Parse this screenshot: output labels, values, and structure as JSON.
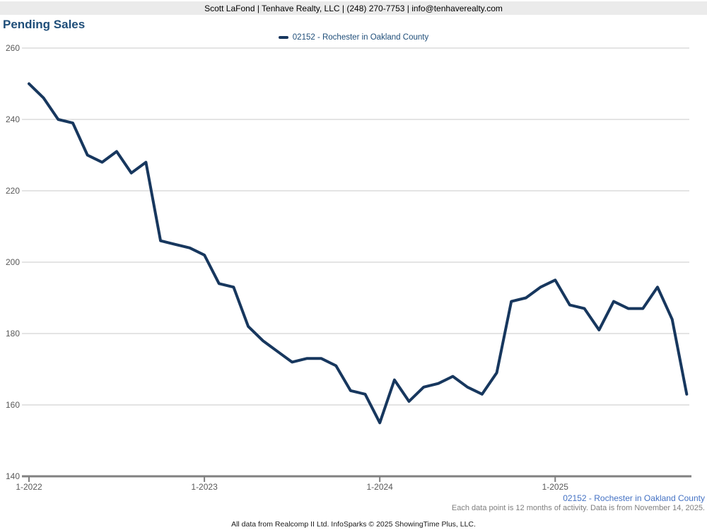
{
  "header": {
    "contact_line": "Scott LaFond | Tenhave Realty, LLC | (248) 270-7753 | info@tenhaverealty.com"
  },
  "title": "Pending Sales",
  "legend": {
    "label": "02152 - Rochester in Oakland County"
  },
  "footer": {
    "series_label": "02152 - Rochester in Oakland County",
    "data_note": "Each data point is 12 months of activity. Data is from November 14, 2025.",
    "attribution": "All data from Realcomp II Ltd. InfoSparks © 2025 ShowingTime Plus, LLC."
  },
  "colors": {
    "line": "#17375E",
    "title_text": "#1F4E79",
    "legend_text": "#1F4E79",
    "footer_series_text": "#4472C4",
    "footer_note_text": "#7F7F7F",
    "axis_text": "#595959",
    "grid": "#C9C9C9",
    "axis_line": "#808080",
    "header_bg": "#EBEBEB"
  },
  "chart_data": {
    "type": "line",
    "title": "Pending Sales",
    "xlabel": "",
    "ylabel": "",
    "ylim": [
      140,
      260
    ],
    "grid": true,
    "legend_position": "top-center",
    "y_ticks": [
      260,
      240,
      220,
      200,
      180,
      160,
      140
    ],
    "x_tick_labels": [
      "1-2022",
      "1-2023",
      "1-2024",
      "1-2025"
    ],
    "x_tick_month_indices": [
      0,
      12,
      24,
      36
    ],
    "x": [
      "1-2022",
      "2-2022",
      "3-2022",
      "4-2022",
      "5-2022",
      "6-2022",
      "7-2022",
      "8-2022",
      "9-2022",
      "10-2022",
      "11-2022",
      "12-2022",
      "1-2023",
      "2-2023",
      "3-2023",
      "4-2023",
      "5-2023",
      "6-2023",
      "7-2023",
      "8-2023",
      "9-2023",
      "10-2023",
      "11-2023",
      "12-2023",
      "1-2024",
      "2-2024",
      "3-2024",
      "4-2024",
      "5-2024",
      "6-2024",
      "7-2024",
      "8-2024",
      "9-2024",
      "10-2024",
      "11-2024",
      "12-2024",
      "1-2025",
      "2-2025",
      "3-2025",
      "4-2025",
      "5-2025",
      "6-2025",
      "7-2025",
      "8-2025",
      "9-2025",
      "10-2025"
    ],
    "series": [
      {
        "name": "02152 - Rochester in Oakland County",
        "color": "#17375E",
        "values": [
          250,
          246,
          240,
          239,
          230,
          228,
          231,
          225,
          228,
          206,
          205,
          204,
          202,
          194,
          193,
          182,
          178,
          175,
          172,
          173,
          173,
          171,
          164,
          163,
          155,
          167,
          161,
          165,
          166,
          168,
          165,
          163,
          169,
          189,
          190,
          193,
          195,
          188,
          187,
          181,
          189,
          187,
          187,
          193,
          184,
          163
        ]
      }
    ]
  }
}
